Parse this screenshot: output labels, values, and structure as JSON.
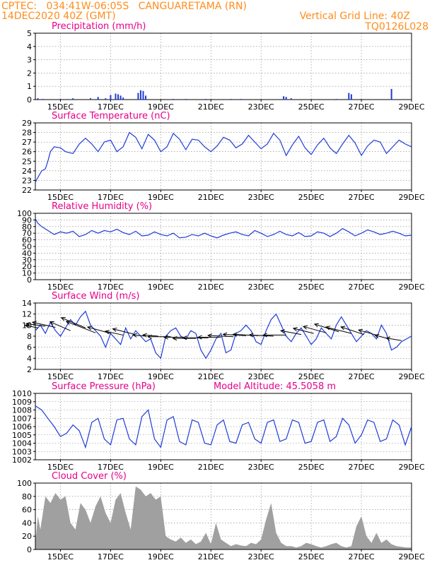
{
  "header": {
    "line1_left": "CPTEC:   034:41W-06:05S   CANGUARETAMA (RN)",
    "line2_left": "14DEC2020 40Z (GMT)",
    "line1_right": "Vertical Grid Line: 40Z",
    "line2_right": "TQ0126L028"
  },
  "colors": {
    "header": "#ff8c1a",
    "title": "#e6008a",
    "line": "#1e3cd8",
    "bar": "#1e3cd8",
    "cloud": "#a0a0a0",
    "arrow": "#000000"
  },
  "x_dates": [
    "15DEC",
    "17DEC",
    "19DEC",
    "21DEC",
    "23DEC",
    "25DEC",
    "27DEC",
    "29DEC"
  ],
  "chart_data": [
    {
      "id": "precip",
      "type": "bar",
      "title": "Precipitation (mm/h)",
      "ylim": [
        0,
        5
      ],
      "yticks": [
        0,
        1,
        2,
        3,
        4,
        5
      ],
      "x": [
        0.1,
        0.3,
        1.0,
        1.5,
        2.2,
        2.5,
        2.8,
        3.0,
        3.2,
        3.3,
        3.4,
        3.5,
        4.1,
        4.2,
        4.3,
        4.4,
        5.5,
        6.0,
        6.8,
        7.8,
        8.2,
        9.9,
        10.0,
        10.2,
        12.0,
        12.5,
        12.6,
        14.2
      ],
      "values": [
        0.1,
        0.05,
        0.05,
        0.1,
        0.1,
        0.2,
        0.1,
        0.35,
        0.45,
        0.4,
        0.3,
        0.15,
        0.5,
        0.7,
        0.65,
        0.3,
        0.05,
        0.05,
        0.05,
        0.05,
        0.05,
        0.25,
        0.2,
        0.1,
        0.05,
        0.5,
        0.4,
        0.8
      ]
    },
    {
      "id": "temp",
      "type": "line",
      "title": "Surface Temperature (nC)",
      "ylim": [
        22,
        29
      ],
      "yticks": [
        22,
        23,
        24,
        25,
        26,
        27,
        28,
        29
      ],
      "x": [
        0,
        0.1,
        0.25,
        0.4,
        0.5,
        0.6,
        0.75,
        1.0,
        1.2,
        1.5,
        1.75,
        2.0,
        2.25,
        2.5,
        2.75,
        3.0,
        3.25,
        3.5,
        3.75,
        4.0,
        4.25,
        4.5,
        4.75,
        5.0,
        5.25,
        5.5,
        5.75,
        6.0,
        6.25,
        6.5,
        6.75,
        7.0,
        7.25,
        7.5,
        7.75,
        8.0,
        8.25,
        8.5,
        8.75,
        9.0,
        9.25,
        9.5,
        9.75,
        10.0,
        10.25,
        10.5,
        10.75,
        11.0,
        11.25,
        11.5,
        11.75,
        12.0,
        12.25,
        12.5,
        12.75,
        13.0,
        13.25,
        13.5,
        13.75,
        14.0,
        14.25,
        14.5,
        14.75,
        15.0
      ],
      "values": [
        22.8,
        23.3,
        24.0,
        24.2,
        25.0,
        26.0,
        26.5,
        26.4,
        26.0,
        25.8,
        26.8,
        27.4,
        26.8,
        26.0,
        27.0,
        27.2,
        26.0,
        26.5,
        28.0,
        27.5,
        26.3,
        27.8,
        27.2,
        26.0,
        26.5,
        27.9,
        27.3,
        26.2,
        27.3,
        27.2,
        26.5,
        26.0,
        26.6,
        27.5,
        27.2,
        26.4,
        26.8,
        27.7,
        27.0,
        26.3,
        26.8,
        27.9,
        27.2,
        25.6,
        26.7,
        27.6,
        26.4,
        25.7,
        26.7,
        27.4,
        26.4,
        25.8,
        26.8,
        27.7,
        26.9,
        25.6,
        26.6,
        27.2,
        27.0,
        25.8,
        26.5,
        27.2,
        26.8,
        26.5
      ]
    },
    {
      "id": "rh",
      "type": "line",
      "title": "Relative Humidity (%)",
      "ylim": [
        0,
        100
      ],
      "yticks": [
        0,
        10,
        20,
        30,
        40,
        50,
        60,
        70,
        80,
        90,
        100
      ],
      "x": [
        0,
        0.1,
        0.25,
        0.5,
        0.75,
        1.0,
        1.25,
        1.5,
        1.75,
        2.0,
        2.25,
        2.5,
        2.75,
        3.0,
        3.25,
        3.5,
        3.75,
        4.0,
        4.25,
        4.5,
        4.75,
        5.0,
        5.25,
        5.5,
        5.75,
        6.0,
        6.25,
        6.5,
        6.75,
        7.0,
        7.25,
        7.5,
        7.75,
        8.0,
        8.25,
        8.5,
        8.75,
        9.0,
        9.25,
        9.5,
        9.75,
        10.0,
        10.25,
        10.5,
        10.75,
        11.0,
        11.25,
        11.5,
        11.75,
        12.0,
        12.25,
        12.5,
        12.75,
        13.0,
        13.25,
        13.5,
        13.75,
        14.0,
        14.25,
        14.5,
        14.75,
        15.0
      ],
      "values": [
        92,
        85,
        80,
        74,
        68,
        72,
        70,
        73,
        65,
        68,
        74,
        70,
        74,
        72,
        76,
        71,
        68,
        73,
        66,
        67,
        72,
        68,
        66,
        70,
        63,
        64,
        68,
        66,
        70,
        66,
        63,
        67,
        70,
        72,
        68,
        66,
        74,
        70,
        65,
        68,
        73,
        68,
        66,
        71,
        65,
        66,
        72,
        70,
        65,
        70,
        77,
        72,
        66,
        70,
        75,
        72,
        68,
        70,
        73,
        70,
        66,
        67
      ]
    },
    {
      "id": "wind",
      "type": "line",
      "title": "Surface Wind (m/s)",
      "ylim": [
        2,
        14
      ],
      "yticks": [
        2,
        4,
        6,
        8,
        10,
        12,
        14
      ],
      "x": [
        0,
        0.2,
        0.4,
        0.6,
        0.8,
        1.0,
        1.2,
        1.4,
        1.6,
        1.8,
        2.0,
        2.2,
        2.4,
        2.6,
        2.8,
        3.0,
        3.2,
        3.4,
        3.6,
        3.8,
        4.0,
        4.2,
        4.4,
        4.6,
        4.8,
        5.0,
        5.2,
        5.4,
        5.6,
        5.8,
        6.0,
        6.2,
        6.4,
        6.6,
        6.8,
        7.0,
        7.2,
        7.4,
        7.6,
        7.8,
        8.0,
        8.2,
        8.4,
        8.6,
        8.8,
        9.0,
        9.2,
        9.4,
        9.6,
        9.8,
        10.0,
        10.2,
        10.4,
        10.6,
        10.8,
        11.0,
        11.2,
        11.4,
        11.6,
        11.8,
        12.0,
        12.2,
        12.4,
        12.6,
        12.8,
        13.0,
        13.2,
        13.4,
        13.6,
        13.8,
        14.0,
        14.2,
        14.4,
        14.6,
        14.8,
        15.0
      ],
      "values": [
        9,
        10,
        8.5,
        10.5,
        9,
        8,
        9.5,
        11,
        10,
        11.5,
        12.5,
        10,
        9,
        8,
        6,
        8.5,
        7.5,
        6.5,
        9.5,
        7.5,
        9,
        8,
        7,
        7.5,
        5,
        4,
        8,
        9,
        9.5,
        8,
        7.5,
        9,
        8.5,
        5.5,
        4,
        5.5,
        7.5,
        8.5,
        5,
        5.5,
        8.5,
        9,
        10,
        9,
        7,
        6.5,
        9,
        11,
        12,
        10,
        8,
        7,
        8.5,
        9.5,
        8,
        6.5,
        7.5,
        9.5,
        8.5,
        7.5,
        10,
        11.5,
        10,
        8.5,
        7,
        8,
        9,
        8.5,
        7.5,
        10,
        8.5,
        5.5,
        6,
        7,
        7.5,
        8
      ]
    },
    {
      "id": "wind_arrows",
      "type": "vector",
      "title": "",
      "arrows": [
        {
          "x": 0.1,
          "y": 9.5,
          "u": -1,
          "v": 0.2
        },
        {
          "x": 0.4,
          "y": 9.8,
          "u": -1.5,
          "v": 0.2
        },
        {
          "x": 0.8,
          "y": 9.6,
          "u": -1.8,
          "v": 0.4
        },
        {
          "x": 1.4,
          "y": 9.0,
          "u": -1.6,
          "v": 0.7
        },
        {
          "x": 2.0,
          "y": 9.5,
          "u": -1.9,
          "v": 0.8
        },
        {
          "x": 2.4,
          "y": 8.6,
          "u": -2.3,
          "v": 0.9
        },
        {
          "x": 3.0,
          "y": 8.5,
          "u": -1.8,
          "v": 0.5
        },
        {
          "x": 3.5,
          "y": 8.2,
          "u": -1.4,
          "v": 0.3
        },
        {
          "x": 3.9,
          "y": 8.4,
          "u": -1.6,
          "v": 0.4
        },
        {
          "x": 4.4,
          "y": 8.0,
          "u": -1.0,
          "v": 0.1
        },
        {
          "x": 4.9,
          "y": 8.0,
          "u": -1.2,
          "v": 0.1
        },
        {
          "x": 5.4,
          "y": 7.9,
          "u": -1.8,
          "v": 0.0
        },
        {
          "x": 5.9,
          "y": 7.8,
          "u": -1.5,
          "v": 0.0
        },
        {
          "x": 6.4,
          "y": 7.6,
          "u": -1.8,
          "v": 0.0
        },
        {
          "x": 6.9,
          "y": 7.7,
          "u": -2.0,
          "v": 0.0
        },
        {
          "x": 7.4,
          "y": 7.8,
          "u": -1.8,
          "v": 0.0
        },
        {
          "x": 7.9,
          "y": 7.9,
          "u": -2.0,
          "v": 0.1
        },
        {
          "x": 8.4,
          "y": 8.1,
          "u": -1.8,
          "v": 0.1
        },
        {
          "x": 8.9,
          "y": 8.1,
          "u": -2.0,
          "v": 0.1
        },
        {
          "x": 9.5,
          "y": 8.0,
          "u": -1.9,
          "v": 0.1
        },
        {
          "x": 10.0,
          "y": 8.2,
          "u": -1.8,
          "v": 0.0
        },
        {
          "x": 10.6,
          "y": 8.3,
          "u": -1.6,
          "v": 0.3
        },
        {
          "x": 11.1,
          "y": 8.5,
          "u": -1.6,
          "v": 0.4
        },
        {
          "x": 11.6,
          "y": 8.6,
          "u": -1.8,
          "v": 0.5
        },
        {
          "x": 12.1,
          "y": 8.8,
          "u": -1.9,
          "v": 0.6
        },
        {
          "x": 12.6,
          "y": 8.5,
          "u": -2.0,
          "v": 0.5
        },
        {
          "x": 13.1,
          "y": 8.3,
          "u": -1.8,
          "v": 0.6
        },
        {
          "x": 13.6,
          "y": 8.2,
          "u": -1.4,
          "v": 0.4
        },
        {
          "x": 14.1,
          "y": 7.5,
          "u": -1.1,
          "v": 0.3
        },
        {
          "x": 14.6,
          "y": 7.2,
          "u": -1.2,
          "v": 0.2
        }
      ]
    },
    {
      "id": "pressure",
      "type": "line",
      "title": "Surface Pressure (hPa)",
      "subtitle": "Model Altitude: 45.5058 m",
      "ylim": [
        1002,
        1010
      ],
      "yticks": [
        1002,
        1003,
        1004,
        1005,
        1006,
        1007,
        1008,
        1009,
        1010
      ],
      "x": [
        0,
        0.25,
        0.5,
        0.75,
        1.0,
        1.25,
        1.5,
        1.75,
        2.0,
        2.25,
        2.5,
        2.75,
        3.0,
        3.25,
        3.5,
        3.75,
        4.0,
        4.25,
        4.5,
        4.75,
        5.0,
        5.25,
        5.5,
        5.75,
        6.0,
        6.25,
        6.5,
        6.75,
        7.0,
        7.25,
        7.5,
        7.75,
        8.0,
        8.25,
        8.5,
        8.75,
        9.0,
        9.25,
        9.5,
        9.75,
        10.0,
        10.25,
        10.5,
        10.75,
        11.0,
        11.25,
        11.5,
        11.75,
        12.0,
        12.25,
        12.5,
        12.75,
        13.0,
        13.25,
        13.5,
        13.75,
        14.0,
        14.25,
        14.5,
        14.75,
        15.0
      ],
      "values": [
        1008.5,
        1008.0,
        1007.0,
        1006.0,
        1004.8,
        1005.2,
        1006.2,
        1005.5,
        1003.5,
        1006.5,
        1007.0,
        1004.5,
        1003.8,
        1006.8,
        1007.0,
        1004.5,
        1003.8,
        1007.2,
        1008.0,
        1004.5,
        1003.5,
        1006.8,
        1007.2,
        1004.2,
        1003.8,
        1006.8,
        1006.5,
        1004.0,
        1003.8,
        1006.2,
        1006.8,
        1004.2,
        1004.0,
        1006.2,
        1006.5,
        1004.5,
        1004.0,
        1006.5,
        1006.8,
        1004.2,
        1004.5,
        1006.8,
        1006.5,
        1004.0,
        1004.2,
        1006.5,
        1006.8,
        1004.2,
        1004.8,
        1007.0,
        1006.2,
        1004.0,
        1005.0,
        1006.8,
        1006.5,
        1004.2,
        1004.5,
        1006.8,
        1006.2,
        1003.8,
        1006.0
      ]
    },
    {
      "id": "cloud",
      "type": "area",
      "title": "Cloud Cover (%)",
      "ylim": [
        0,
        100
      ],
      "yticks": [
        0,
        20,
        40,
        60,
        80,
        100
      ],
      "x": [
        0,
        0.1,
        0.2,
        0.4,
        0.6,
        0.8,
        1.0,
        1.2,
        1.4,
        1.6,
        1.8,
        2.0,
        2.2,
        2.4,
        2.6,
        2.8,
        3.0,
        3.2,
        3.4,
        3.6,
        3.8,
        4.0,
        4.2,
        4.4,
        4.6,
        4.8,
        5.0,
        5.2,
        5.4,
        5.6,
        5.8,
        6.0,
        6.2,
        6.4,
        6.6,
        6.8,
        7.0,
        7.2,
        7.4,
        7.6,
        7.8,
        8.0,
        8.2,
        8.4,
        8.6,
        8.8,
        9.0,
        9.2,
        9.4,
        9.6,
        9.8,
        10.0,
        10.2,
        10.4,
        10.6,
        10.8,
        11.0,
        11.2,
        11.4,
        11.6,
        11.8,
        12.0,
        12.2,
        12.4,
        12.6,
        12.8,
        13.0,
        13.2,
        13.4,
        13.6,
        13.8,
        14.0,
        14.2,
        14.4,
        14.6,
        14.8,
        15.0
      ],
      "values": [
        10,
        50,
        30,
        80,
        70,
        85,
        75,
        80,
        40,
        30,
        70,
        60,
        40,
        65,
        80,
        55,
        40,
        75,
        85,
        55,
        30,
        95,
        90,
        80,
        85,
        75,
        80,
        20,
        15,
        12,
        18,
        10,
        15,
        8,
        12,
        25,
        8,
        40,
        15,
        10,
        5,
        8,
        6,
        5,
        10,
        8,
        15,
        45,
        70,
        25,
        10,
        5,
        5,
        3,
        5,
        10,
        8,
        5,
        3,
        5,
        8,
        10,
        5,
        3,
        5,
        35,
        50,
        20,
        10,
        25,
        10,
        15,
        8,
        5,
        4,
        3,
        3
      ]
    }
  ]
}
